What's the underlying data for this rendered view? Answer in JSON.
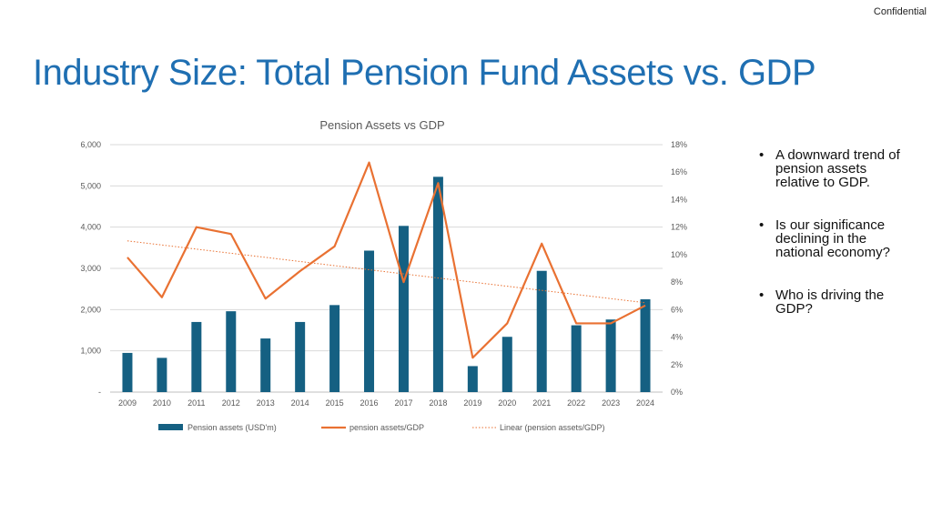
{
  "header": {
    "confidential": "Confidential"
  },
  "title": "Industry Size: Total Pension Fund Assets vs. GDP",
  "bullets": [
    "A downward trend of pension assets relative to GDP.",
    "Is our significance declining in the national economy?",
    "Who is driving the GDP?"
  ],
  "colors": {
    "title": "#1f6fb2",
    "bar": "#156082",
    "line": "#e97132",
    "trend": "#e97132"
  },
  "chart_data": {
    "type": "bar",
    "title": "Pension Assets vs GDP",
    "categories": [
      "2009",
      "2010",
      "2011",
      "2012",
      "2013",
      "2014",
      "2015",
      "2016",
      "2017",
      "2018",
      "2019",
      "2020",
      "2021",
      "2022",
      "2023",
      "2024"
    ],
    "series": [
      {
        "name": "Pension assets (USD'm)",
        "type": "bar",
        "axis": "left",
        "values": [
          950,
          830,
          1700,
          1960,
          1300,
          1700,
          2110,
          3430,
          4030,
          5220,
          630,
          1340,
          2940,
          1620,
          1760,
          2250
        ]
      },
      {
        "name": "pension assets/GDP",
        "type": "line",
        "axis": "right",
        "values": [
          9.8,
          6.9,
          12.0,
          11.5,
          6.8,
          8.8,
          10.6,
          16.7,
          8.0,
          15.2,
          2.5,
          5.0,
          10.8,
          5.0,
          5.0,
          6.3
        ]
      },
      {
        "name": "Linear (pension assets/GDP)",
        "type": "trendline",
        "axis": "right",
        "style": "dotted",
        "values": [
          11.0,
          10.7,
          10.4,
          10.1,
          9.8,
          9.5,
          9.2,
          8.9,
          8.6,
          8.3,
          8.0,
          7.7,
          7.4,
          7.1,
          6.8,
          6.5
        ]
      }
    ],
    "y_left": {
      "ylim": [
        0,
        6000
      ],
      "ticks": [
        0,
        1000,
        2000,
        3000,
        4000,
        5000,
        6000
      ],
      "tick_labels": [
        "-",
        "1,000",
        "2,000",
        "3,000",
        "4,000",
        "5,000",
        "6,000"
      ]
    },
    "y_right": {
      "ylim": [
        0,
        18
      ],
      "ticks": [
        0,
        2,
        4,
        6,
        8,
        10,
        12,
        14,
        16,
        18
      ],
      "tick_labels": [
        "0%",
        "2%",
        "4%",
        "6%",
        "8%",
        "10%",
        "12%",
        "14%",
        "16%",
        "18%"
      ]
    },
    "grid": true,
    "legend": "bottom"
  }
}
